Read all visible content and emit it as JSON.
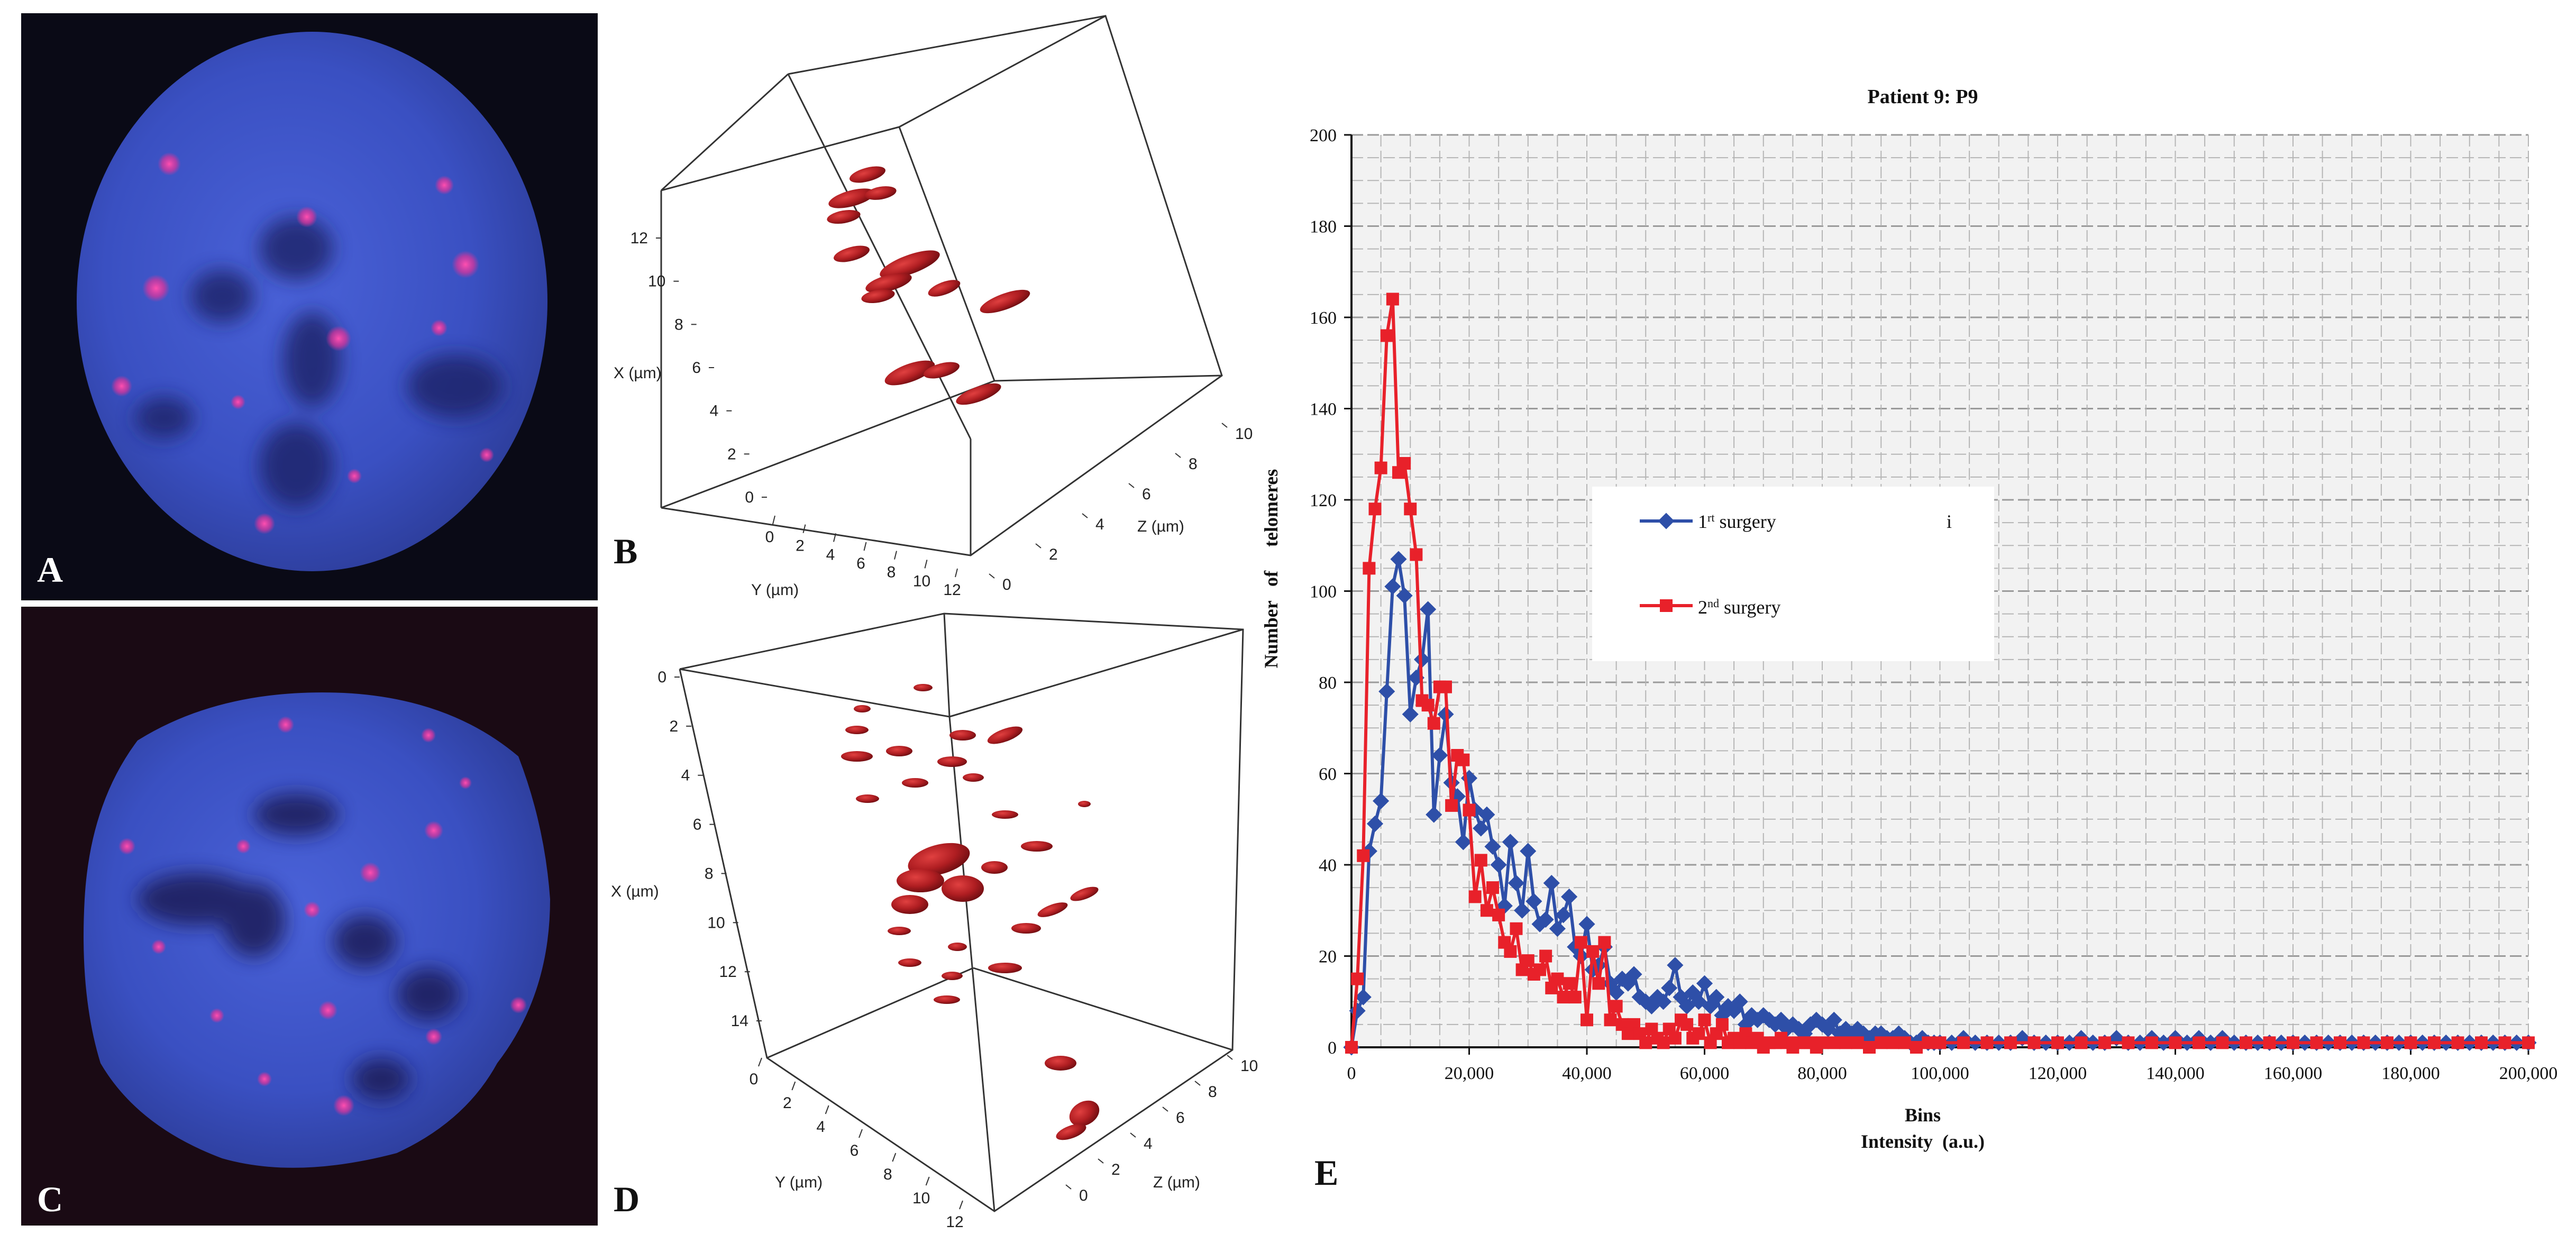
{
  "panels": {
    "a": {
      "label": "A"
    },
    "b": {
      "label": "B",
      "x_axis_label": "X (µm)",
      "y_axis_label": "Y (µm)",
      "z_axis_label": "Z (µm)",
      "x_ticks": [
        "0",
        "2",
        "4",
        "6",
        "8",
        "10",
        "12"
      ],
      "y_ticks": [
        "0",
        "2",
        "4",
        "6",
        "8",
        "10",
        "12"
      ],
      "z_ticks": [
        "0",
        "2",
        "4",
        "6",
        "8",
        "10"
      ]
    },
    "c": {
      "label": "C"
    },
    "d": {
      "label": "D",
      "x_axis_label": "X (µm)",
      "y_axis_label": "Y (µm)",
      "z_axis_label": "Z (µm)",
      "x_ticks": [
        "0",
        "2",
        "4",
        "6",
        "8",
        "10",
        "12",
        "14"
      ],
      "y_ticks": [
        "0",
        "2",
        "4",
        "6",
        "8",
        "10",
        "12"
      ],
      "z_ticks": [
        "0",
        "2",
        "4",
        "6",
        "8",
        "10"
      ]
    },
    "e": {
      "label": "E"
    }
  },
  "colors": {
    "series1": "#2E4FA8",
    "series2": "#E8212A",
    "nucleus": "#3A4FC0",
    "telomere": "#B01E22"
  },
  "chart_data": {
    "type": "line",
    "title": "Patient 9: P9",
    "xlabel_line1": "Bins",
    "xlabel_line2": "Intensity  (a.u.)",
    "ylabel": "Number   of     telomeres",
    "xlim": [
      0,
      200000
    ],
    "ylim": [
      0,
      200
    ],
    "y_ticks": [
      "0",
      "20",
      "40",
      "60",
      "80",
      "100",
      "120",
      "140",
      "160",
      "180",
      "200"
    ],
    "x_ticks": [
      "0",
      "20,000",
      "40,000",
      "60,000",
      "80,000",
      "100,000",
      "120,000",
      "140,000",
      "160,000",
      "180,000",
      "200,000"
    ],
    "x_tick_values": [
      0,
      20000,
      40000,
      60000,
      80000,
      100000,
      120000,
      140000,
      160000,
      180000,
      200000
    ],
    "legend": {
      "position": "center-right",
      "marker_note": "i",
      "entries": [
        {
          "base": "1",
          "sup": "rt",
          "rest": " surgery"
        },
        {
          "base": "2",
          "sup": "nd",
          "rest": " surgery"
        }
      ]
    },
    "series": [
      {
        "name": "1rt surgery",
        "marker": "diamond",
        "color": "#2E4FA8",
        "x": [
          0,
          1000,
          2000,
          3000,
          4000,
          5000,
          6000,
          7000,
          8000,
          9000,
          10000,
          11000,
          12000,
          13000,
          14000,
          15000,
          16000,
          17000,
          18000,
          19000,
          20000,
          21000,
          22000,
          23000,
          24000,
          25000,
          26000,
          27000,
          28000,
          29000,
          30000,
          31000,
          32000,
          33000,
          34000,
          35000,
          36000,
          37000,
          38000,
          39000,
          40000,
          41000,
          42000,
          43000,
          44000,
          45000,
          46000,
          47000,
          48000,
          49000,
          50000,
          51000,
          52000,
          53000,
          54000,
          55000,
          56000,
          57000,
          58000,
          59000,
          60000,
          61000,
          62000,
          63000,
          64000,
          65000,
          66000,
          67000,
          68000,
          69000,
          70000,
          71000,
          72000,
          73000,
          74000,
          75000,
          76000,
          77000,
          78000,
          79000,
          80000,
          81000,
          82000,
          83000,
          84000,
          85000,
          86000,
          87000,
          88000,
          89000,
          90000,
          91000,
          92000,
          93000,
          94000,
          95000,
          96000,
          97000,
          98000,
          99000,
          100000,
          102000,
          104000,
          106000,
          108000,
          110000,
          112000,
          114000,
          116000,
          118000,
          120000,
          122000,
          124000,
          126000,
          128000,
          130000,
          132000,
          134000,
          136000,
          138000,
          140000,
          142000,
          144000,
          146000,
          148000,
          150000,
          152000,
          154000,
          156000,
          158000,
          160000,
          162000,
          164000,
          166000,
          168000,
          170000,
          172000,
          174000,
          176000,
          178000,
          180000,
          182000,
          184000,
          186000,
          188000,
          190000,
          192000,
          194000,
          196000,
          198000,
          200000
        ],
        "values": [
          0,
          8,
          11,
          43,
          49,
          54,
          78,
          101,
          107,
          99,
          73,
          81,
          85,
          96,
          51,
          64,
          73,
          58,
          55,
          45,
          59,
          52,
          48,
          51,
          44,
          40,
          31,
          45,
          36,
          30,
          43,
          32,
          27,
          28,
          36,
          26,
          29,
          33,
          22,
          20,
          27,
          17,
          18,
          22,
          14,
          12,
          15,
          14,
          16,
          11,
          10,
          9,
          11,
          10,
          13,
          18,
          11,
          9,
          12,
          10,
          14,
          9,
          11,
          7,
          9,
          8,
          10,
          5,
          7,
          6,
          7,
          6,
          5,
          6,
          4,
          5,
          4,
          3,
          5,
          6,
          5,
          4,
          6,
          3,
          4,
          3,
          4,
          3,
          2,
          3,
          3,
          2,
          2,
          3,
          2,
          1,
          1,
          2,
          1,
          1,
          1,
          1,
          2,
          1,
          1,
          1,
          1,
          2,
          1,
          1,
          1,
          1,
          2,
          1,
          1,
          2,
          1,
          1,
          2,
          1,
          2,
          1,
          2,
          1,
          2,
          1,
          1,
          1,
          1,
          1,
          1,
          1,
          1,
          1,
          1,
          1,
          1,
          1,
          1,
          1,
          1,
          1,
          1,
          1,
          1,
          1,
          1,
          1,
          1,
          1,
          1
        ]
      },
      {
        "name": "2nd surgery",
        "marker": "square",
        "color": "#E8212A",
        "x": [
          0,
          1000,
          2000,
          3000,
          4000,
          5000,
          6000,
          7000,
          8000,
          9000,
          10000,
          11000,
          12000,
          13000,
          14000,
          15000,
          16000,
          17000,
          18000,
          19000,
          20000,
          21000,
          22000,
          23000,
          24000,
          25000,
          26000,
          27000,
          28000,
          29000,
          30000,
          31000,
          32000,
          33000,
          34000,
          35000,
          36000,
          37000,
          38000,
          39000,
          40000,
          41000,
          42000,
          43000,
          44000,
          45000,
          46000,
          47000,
          48000,
          49000,
          50000,
          51000,
          52000,
          53000,
          54000,
          55000,
          56000,
          57000,
          58000,
          59000,
          60000,
          61000,
          62000,
          63000,
          64000,
          65000,
          66000,
          67000,
          68000,
          69000,
          70000,
          71000,
          72000,
          73000,
          74000,
          75000,
          76000,
          77000,
          78000,
          79000,
          80000,
          82000,
          84000,
          86000,
          88000,
          90000,
          92000,
          94000,
          96000,
          98000,
          100000,
          104000,
          108000,
          112000,
          116000,
          120000,
          124000,
          128000,
          132000,
          136000,
          140000,
          144000,
          148000,
          152000,
          156000,
          160000,
          164000,
          168000,
          172000,
          176000,
          180000,
          184000,
          188000,
          192000,
          196000,
          200000
        ],
        "values": [
          0,
          15,
          42,
          105,
          118,
          127,
          156,
          164,
          126,
          128,
          118,
          108,
          76,
          75,
          71,
          79,
          79,
          53,
          64,
          63,
          52,
          33,
          41,
          30,
          35,
          29,
          23,
          21,
          26,
          17,
          19,
          16,
          17,
          20,
          13,
          15,
          11,
          14,
          11,
          23,
          6,
          21,
          14,
          23,
          6,
          9,
          5,
          3,
          5,
          3,
          1,
          4,
          2,
          1,
          4,
          2,
          6,
          5,
          2,
          3,
          6,
          1,
          3,
          5,
          1,
          2,
          1,
          3,
          1,
          2,
          0,
          1,
          1,
          2,
          1,
          0,
          1,
          1,
          1,
          0,
          1,
          1,
          1,
          1,
          0,
          1,
          1,
          1,
          0,
          1,
          1,
          1,
          1,
          1,
          1,
          1,
          1,
          1,
          1,
          1,
          1,
          1,
          1,
          1,
          1,
          1,
          1,
          1,
          1,
          1,
          1,
          1,
          1,
          1,
          1,
          1
        ]
      }
    ]
  }
}
